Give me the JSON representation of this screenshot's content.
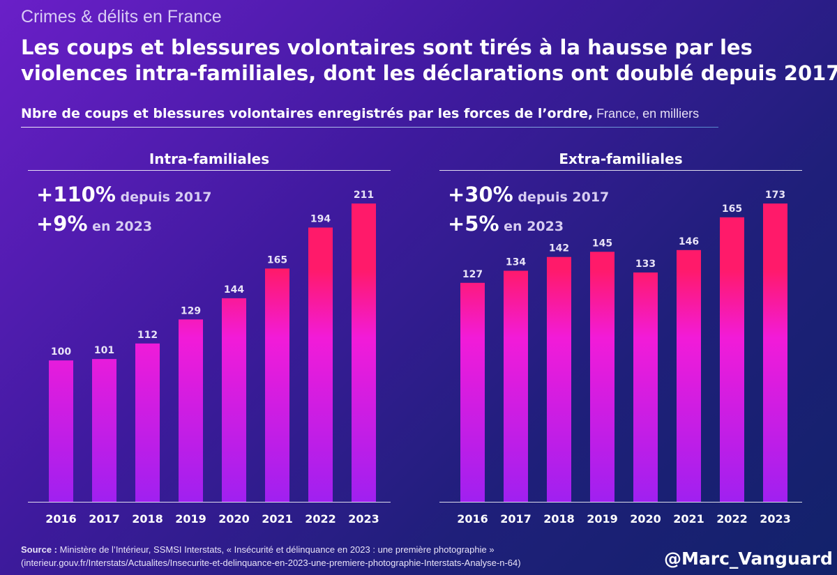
{
  "header": {
    "kicker": "Crimes & délits en France",
    "title_line1": "Les coups et blessures volontaires sont tirés à la hausse par les",
    "title_line2": "violences intra-familiales, dont les déclarations ont doublé depuis 2017",
    "subtitle_bold": "Nbre de coups et blessures volontaires enregistrés par les forces de l’ordre,",
    "subtitle_light": " France, en milliers"
  },
  "colors": {
    "bar_top": "#ff1a6a",
    "bar_mid": "#f21bd8",
    "bar_bottom": "#a020f0",
    "label": "#e8e3f7"
  },
  "chart_data": [
    {
      "type": "bar",
      "title": "Intra-familiales",
      "categories": [
        "2016",
        "2017",
        "2018",
        "2019",
        "2020",
        "2021",
        "2022",
        "2023"
      ],
      "values": [
        100,
        101,
        112,
        129,
        144,
        165,
        194,
        211
      ],
      "ylim": [
        0,
        211
      ],
      "unit": "milliers",
      "stats": [
        {
          "big": "+110%",
          "small": " depuis 2017"
        },
        {
          "big": "+9%",
          "small": " en 2023"
        }
      ]
    },
    {
      "type": "bar",
      "title": "Extra-familiales",
      "categories": [
        "2016",
        "2017",
        "2018",
        "2019",
        "2020",
        "2021",
        "2022",
        "2023"
      ],
      "values": [
        127,
        134,
        142,
        145,
        133,
        146,
        165,
        173
      ],
      "ylim": [
        0,
        173
      ],
      "unit": "milliers",
      "stats": [
        {
          "big": "+30%",
          "small": " depuis 2017"
        },
        {
          "big": "+5%",
          "small": " en 2023"
        }
      ]
    }
  ],
  "footer": {
    "source_label": "Source :",
    "source_text": " Ministère de l’Intérieur, SSMSI Interstats, « Insécurité et délinquance en 2023 : une première photographie »",
    "source_url": "(interieur.gouv.fr/Interstats/Actualites/Insecurite-et-delinquance-en-2023-une-premiere-photographie-Interstats-Analyse-n-64)",
    "handle": "@Marc_Vanguard"
  }
}
